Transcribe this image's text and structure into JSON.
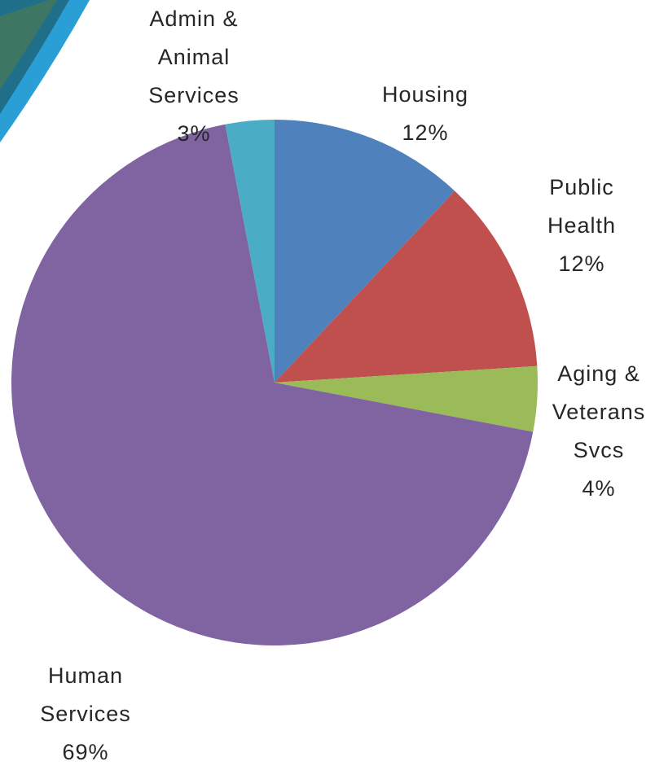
{
  "chart_data": {
    "type": "pie",
    "categories": [
      [
        "Housing"
      ],
      [
        "Public",
        "Health"
      ],
      [
        "Aging &",
        "Veterans",
        "Svcs"
      ],
      [
        "Human",
        "Services"
      ],
      [
        "Admin &",
        "Animal",
        "Services"
      ]
    ],
    "values": [
      12,
      12,
      4,
      69,
      3
    ],
    "value_labels": [
      "12%",
      "12%",
      "4%",
      "69%",
      "3%"
    ],
    "colors": [
      "#4f81bd",
      "#c0504d",
      "#9bbb59",
      "#8064a2",
      "#4bacc6"
    ]
  }
}
